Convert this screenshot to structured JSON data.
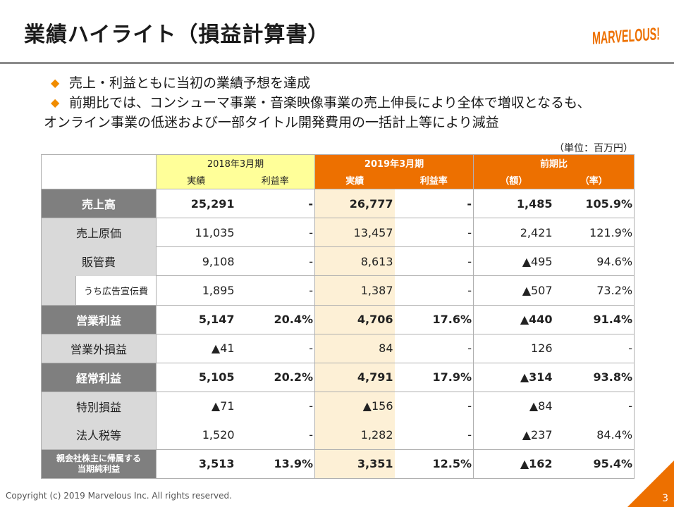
{
  "title": "業績ハイライト（損益計算書）",
  "logo_text": "MARVELOUS!",
  "bullets": [
    "売上・利益ともに当初の業績予想を達成",
    "前期比では、コンシューマ事業・音楽映像事業の売上伸長により全体で増収となるも、",
    "オンライン事業の低迷および一部タイトル開発費用の一括計上等により減益"
  ],
  "bullet_mark": "◆",
  "unit": "（単位：百万円）",
  "table": {
    "header": {
      "fy2018": "2018年3月期",
      "fy2019": "2019年3月期",
      "yoy": "前期比",
      "actual": "実績",
      "margin": "利益率",
      "amount": "（額）",
      "rate": "（率）"
    },
    "rows": [
      {
        "label": "売上高",
        "a18": "25,291",
        "m18": "-",
        "a19": "26,777",
        "m19": "-",
        "amt": "1,485",
        "rate": "105.9%"
      },
      {
        "label": "売上原価",
        "a18": "11,035",
        "m18": "-",
        "a19": "13,457",
        "m19": "-",
        "amt": "2,421",
        "rate": "121.9%"
      },
      {
        "label": "販管費",
        "a18": "9,108",
        "m18": "-",
        "a19": "8,613",
        "m19": "-",
        "amt": "▲495",
        "rate": "94.6%"
      },
      {
        "label": "うち広告宣伝費",
        "a18": "1,895",
        "m18": "-",
        "a19": "1,387",
        "m19": "-",
        "amt": "▲507",
        "rate": "73.2%"
      },
      {
        "label": "営業利益",
        "a18": "5,147",
        "m18": "20.4%",
        "a19": "4,706",
        "m19": "17.6%",
        "amt": "▲440",
        "rate": "91.4%"
      },
      {
        "label": "営業外損益",
        "a18": "▲41",
        "m18": "-",
        "a19": "84",
        "m19": "-",
        "amt": "126",
        "rate": "-"
      },
      {
        "label": "経常利益",
        "a18": "5,105",
        "m18": "20.2%",
        "a19": "4,791",
        "m19": "17.9%",
        "amt": "▲314",
        "rate": "93.8%"
      },
      {
        "label": "特別損益",
        "a18": "▲71",
        "m18": "-",
        "a19": "▲156",
        "m19": "-",
        "amt": "▲84",
        "rate": "-"
      },
      {
        "label": "法人税等",
        "a18": "1,520",
        "m18": "-",
        "a19": "1,282",
        "m19": "-",
        "amt": "▲237",
        "rate": "84.4%"
      },
      {
        "label_line1": "親会社株主に帰属する",
        "label_line2": "当期純利益",
        "a18": "3,513",
        "m18": "13.9%",
        "a19": "3,351",
        "m19": "12.5%",
        "amt": "▲162",
        "rate": "95.4%"
      }
    ]
  },
  "footer": {
    "copyright": "Copyright (c) 2019 Marvelous Inc. All rights reserved.",
    "page": "3"
  },
  "colors": {
    "accent_orange": "#ed7000",
    "header_2018": "#ffff99",
    "col_2019_tint": "#fdf0d6",
    "label_dark": "#7f7f7f",
    "label_light": "#d9d9d9"
  }
}
